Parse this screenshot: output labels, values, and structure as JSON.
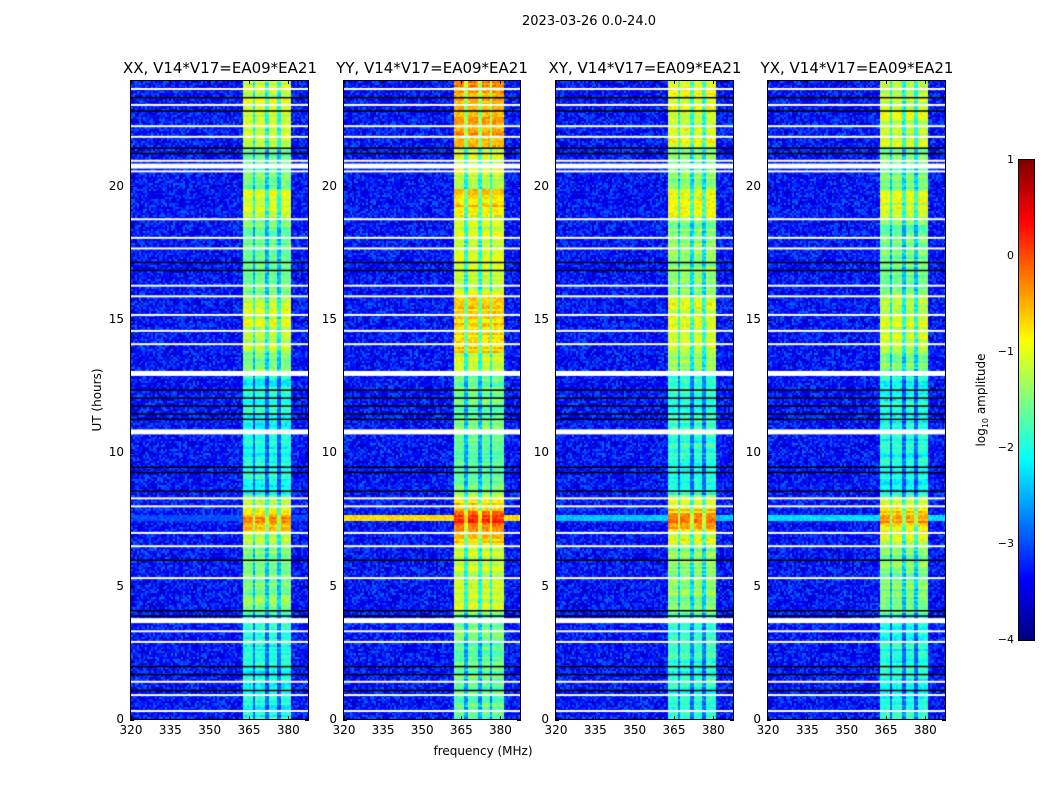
{
  "suptitle": "2023-03-26 0.0-24.0",
  "chart_data": {
    "type": "heatmap",
    "xlabel": "frequency (MHz)",
    "ylabel": "UT (hours)",
    "xlim": [
      320,
      387.5
    ],
    "ylim": [
      0,
      24
    ],
    "xticks": [
      "320",
      "335",
      "350",
      "365",
      "380"
    ],
    "xtick_values": [
      320,
      335,
      350,
      365,
      380
    ],
    "yticks": [
      "0",
      "5",
      "10",
      "15",
      "20"
    ],
    "ytick_values": [
      0,
      5,
      10,
      15,
      20
    ],
    "panels": [
      {
        "title": "XX, V14*V17=EA09*EA21",
        "pol": "XX",
        "band_level": -1.5,
        "line_7_6h": -3.0
      },
      {
        "title": "YY, V14*V17=EA09*EA21",
        "pol": "YY",
        "band_level": -1.1,
        "line_7_6h": -0.7
      },
      {
        "title": "XY, V14*V17=EA09*EA21",
        "pol": "XY",
        "band_level": -1.4,
        "line_7_6h": -2.4
      },
      {
        "title": "YX, V14*V17=EA09*EA21",
        "pol": "YX",
        "band_level": -1.5,
        "line_7_6h": -2.3
      }
    ],
    "background_level": -3.3,
    "rfi_band_mhz": [
      362,
      381
    ],
    "rfi_subband_gaps_mhz": [
      366.5,
      371.5,
      376
    ],
    "bright_periods_hours": [
      [
        18.9,
        20.0
      ],
      [
        13.8,
        16.0
      ],
      [
        6.6,
        8.3
      ],
      [
        21.5,
        24.0
      ]
    ],
    "flagged_hours": [
      23.7,
      23.1,
      22.3,
      21.9,
      21.0,
      20.8,
      20.6,
      18.8,
      18.1,
      17.7,
      16.3,
      15.9,
      15.2,
      14.6,
      14.1,
      13.0,
      10.8,
      8.3,
      8.0,
      7.0,
      6.5,
      5.3,
      3.7,
      3.3,
      2.9,
      1.4,
      0.9,
      0.3
    ],
    "blackout_hours": [
      23.4,
      22.9,
      21.5,
      21.3,
      17.2,
      16.9,
      12.4,
      12.1,
      11.8,
      11.5,
      11.3,
      9.5,
      9.3,
      8.6,
      6.0,
      4.1,
      3.9,
      2.0,
      1.7,
      1.1
    ],
    "colorbar": {
      "label": "log10 amplitude",
      "label_main": "log",
      "label_sub": "10",
      "label_rest": " amplitude",
      "range": [
        -4,
        1
      ],
      "ticks": [
        "1",
        "0",
        "−1",
        "−2",
        "−3",
        "−4"
      ],
      "tick_values": [
        1,
        0,
        -1,
        -2,
        -3,
        -4
      ],
      "colormap": "jet"
    }
  }
}
